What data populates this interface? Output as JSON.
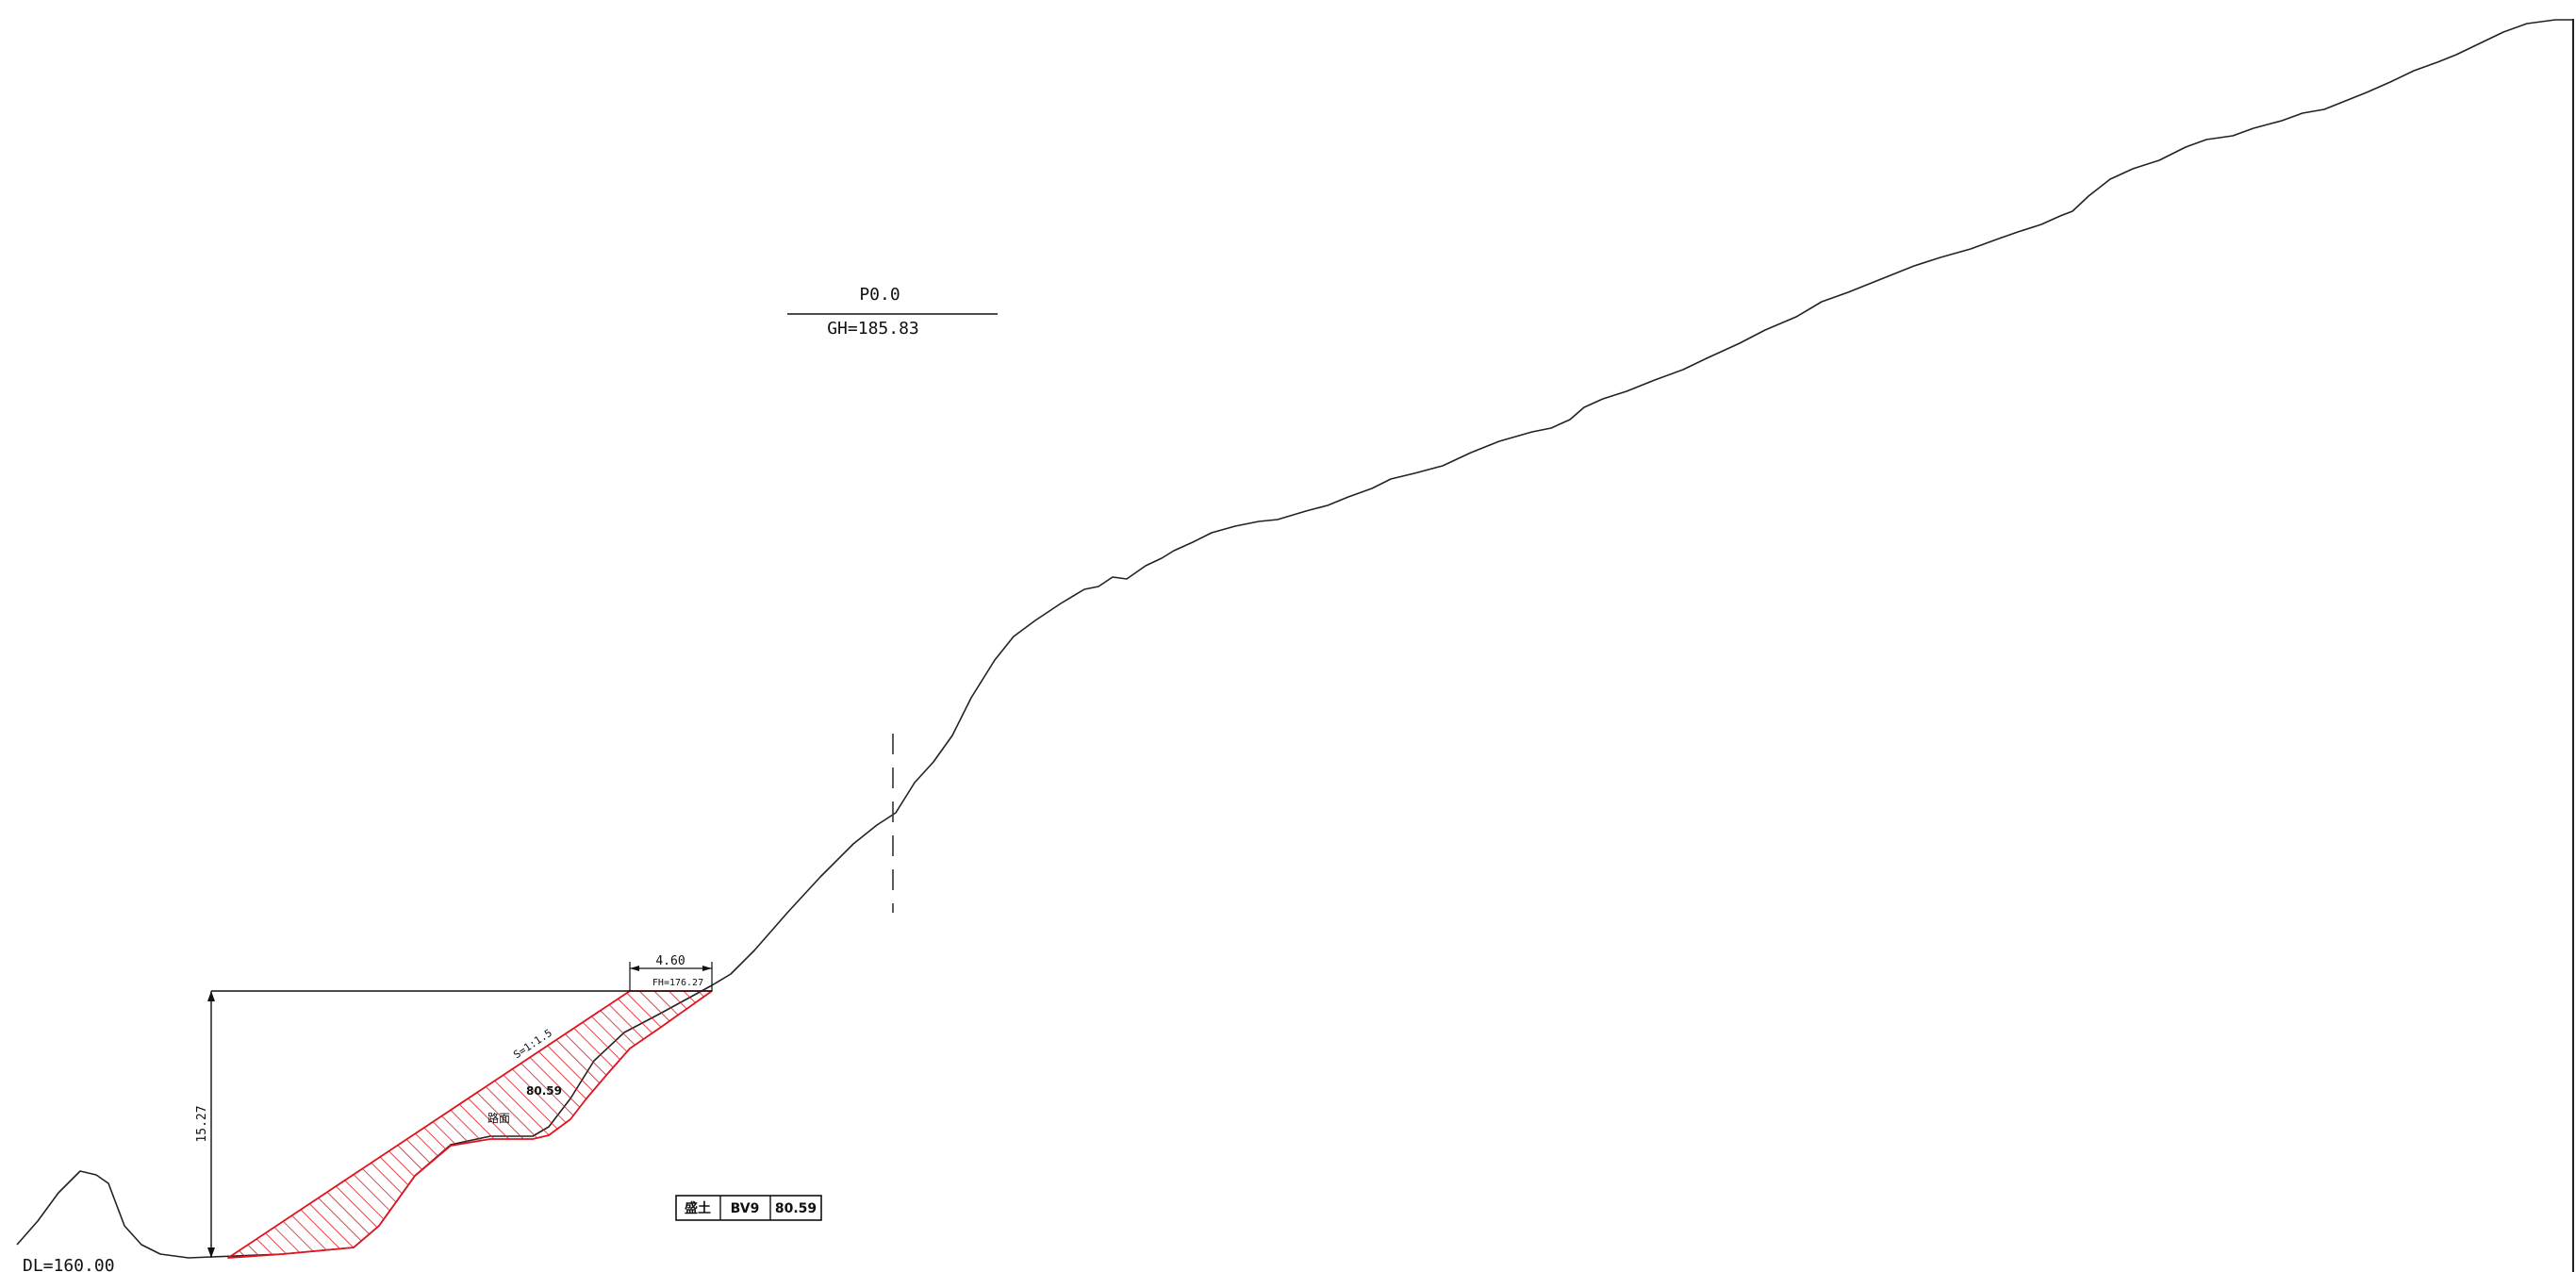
{
  "station": {
    "name": "P0.0",
    "ground_height": "GH=185.83"
  },
  "datum": {
    "label": "DL=160.00"
  },
  "dimensions": {
    "width_label": "4.60",
    "formation_height": "FH=176.27",
    "vertical_label": "15.27",
    "slope_label": "S=1:1.5"
  },
  "fill_area": {
    "value": "80.59",
    "surface_label": "路面"
  },
  "summary_table": {
    "cells": [
      "盛土",
      "BV9",
      "80.59"
    ]
  },
  "colors": {
    "ground_line": "#222222",
    "fill_hatch": "#e0141e",
    "dimension_line": "#111111"
  }
}
